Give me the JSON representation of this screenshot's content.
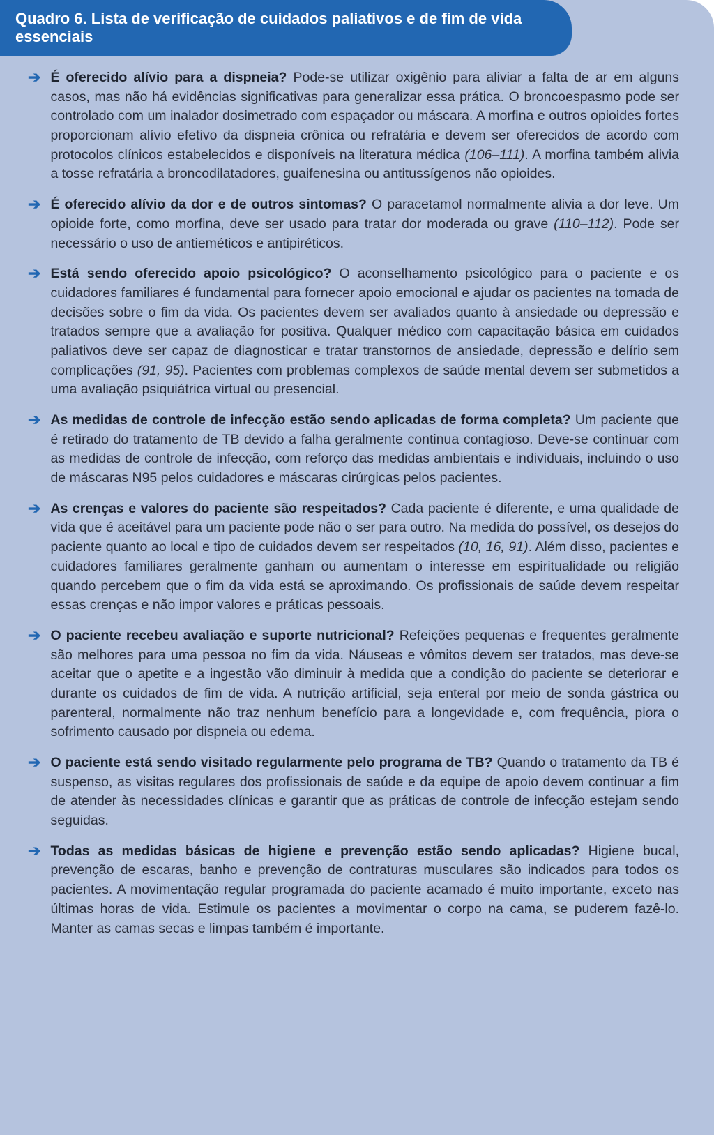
{
  "colors": {
    "header_bg": "#2267b2",
    "box_bg": "#b5c3de",
    "header_text": "#ffffff",
    "body_text": "#2a2e3a",
    "arrow": "#2267b2"
  },
  "header_title": "Quadro 6. Lista de verificação de cuidados paliativos e de fim de vida essenciais",
  "items": [
    {
      "lead": "É oferecido alívio para a dispneia?",
      "body_before_ref": " Pode-se utilizar oxigênio para aliviar a falta de ar em alguns casos, mas não há evidências significativas para generalizar essa prática. O broncoespasmo pode ser controlado com um inalador dosimetrado com espaçador ou máscara. A morfina e outros opioides fortes proporcionam alívio efetivo da dispneia crônica ou refratária e devem ser oferecidos de acordo com protocolos clínicos estabelecidos e disponíveis na literatura médica ",
      "ref": "(106–111)",
      "body_after_ref": ". A morfina também alivia a tosse refratária a broncodilatadores, guaifenesina ou antitussígenos não opioides."
    },
    {
      "lead": "É oferecido alívio da dor e de outros sintomas?",
      "body_before_ref": " O paracetamol normalmente alivia a dor leve. Um opioide forte, como morfina, deve ser usado para tratar dor moderada ou grave ",
      "ref": "(110–112)",
      "body_after_ref": ". Pode ser necessário o uso de antieméticos e antipiréticos."
    },
    {
      "lead": "Está sendo oferecido apoio psicológico?",
      "body_before_ref": " O aconselhamento psicológico para o paciente e os cuidadores familiares é fundamental para fornecer apoio emocional e ajudar os pacientes na tomada de decisões sobre o fim da vida. Os pacientes devem ser avaliados quanto à ansiedade ou depressão e tratados sempre que a avaliação for positiva. Qualquer médico com capacitação básica em cuidados paliativos deve ser capaz de diagnosticar e tratar transtornos de ansiedade, depressão e delírio sem complicações ",
      "ref": "(91, 95)",
      "body_after_ref": ". Pacientes com problemas complexos de saúde mental devem ser submetidos a uma avaliação psiquiátrica virtual ou presencial."
    },
    {
      "lead": "As medidas de controle de infecção estão sendo aplicadas de forma completa?",
      "body_before_ref": " Um paciente que é retirado do tratamento de TB devido a falha geralmente continua contagioso. Deve-se continuar com as medidas de controle de infecção, com reforço das medidas ambientais e individuais, incluindo o uso de máscaras N95 pelos cuidadores e máscaras cirúrgicas pelos pacientes.",
      "ref": "",
      "body_after_ref": ""
    },
    {
      "lead": "As crenças e valores do paciente são respeitados?",
      "body_before_ref": " Cada paciente é diferente, e uma qualidade de vida que é aceitável para um paciente pode não o ser para outro. Na medida do possível, os desejos do paciente quanto ao local e tipo de cuidados devem ser respeitados ",
      "ref": "(10, 16, 91)",
      "body_after_ref": ". Além disso, pacientes e cuidadores familiares geralmente ganham ou aumentam o interesse em espiritualidade ou religião quando percebem que o fim da vida está se aproximando. Os profissionais de saúde devem respeitar essas crenças e não impor valores e práticas pessoais."
    },
    {
      "lead": "O paciente recebeu avaliação e suporte nutricional?",
      "body_before_ref": " Refeições pequenas e frequentes geralmente são melhores para uma pessoa no fim da vida. Náuseas e vômitos devem ser tratados, mas deve-se aceitar que o apetite e a ingestão vão diminuir à medida que a condição do paciente se deteriorar e durante os cuidados de fim de vida. A nutrição artificial, seja enteral por meio de sonda gástrica ou parenteral, normalmente não traz nenhum benefício para a longevidade e, com frequência, piora o sofrimento causado por dispneia ou edema.",
      "ref": "",
      "body_after_ref": ""
    },
    {
      "lead": "O paciente está sendo visitado regularmente pelo programa de TB?",
      "body_before_ref": " Quando o tratamento da TB é suspenso, as visitas regulares dos profissionais de saúde e da equipe de apoio devem continuar a fim de atender às necessidades clínicas e garantir que as práticas de controle de infecção estejam sendo seguidas.",
      "ref": "",
      "body_after_ref": ""
    },
    {
      "lead": "Todas as medidas básicas de higiene e prevenção estão sendo aplicadas?",
      "body_before_ref": " Higiene bucal, prevenção de escaras, banho e prevenção de contraturas musculares são indicados para todos os pacientes. A movimentação regular programada do paciente acamado é muito importante, exceto nas últimas horas de vida. Estimule os pacientes a movimentar o corpo na cama, se puderem fazê-lo. Manter as camas secas e limpas também é importante.",
      "ref": "",
      "body_after_ref": ""
    }
  ]
}
